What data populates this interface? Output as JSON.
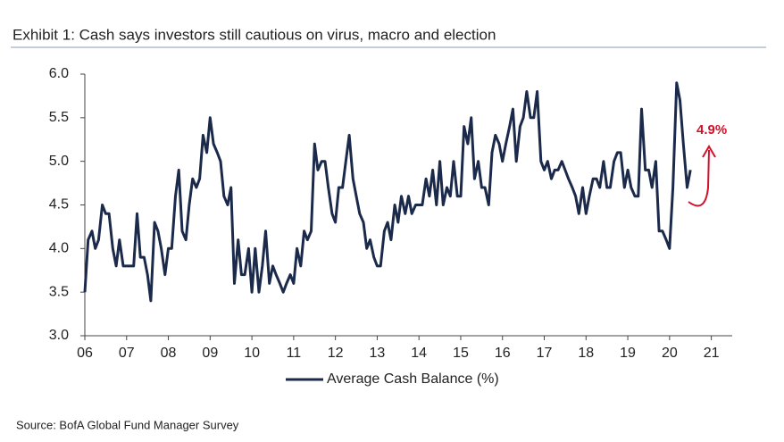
{
  "chart_data": {
    "type": "line",
    "title": "Exhibit 1: Cash says investors still cautious on virus, macro and election",
    "source": "Source: BofA Global Fund Manager Survey",
    "annotation": "4.9%",
    "legend": "bottom",
    "x": [
      2006.0,
      2006.08,
      2006.17,
      2006.25,
      2006.33,
      2006.42,
      2006.5,
      2006.58,
      2006.67,
      2006.75,
      2006.83,
      2006.92,
      2007.0,
      2007.08,
      2007.17,
      2007.25,
      2007.33,
      2007.42,
      2007.5,
      2007.58,
      2007.67,
      2007.75,
      2007.83,
      2007.92,
      2008.0,
      2008.08,
      2008.17,
      2008.25,
      2008.33,
      2008.42,
      2008.5,
      2008.58,
      2008.67,
      2008.75,
      2008.83,
      2008.92,
      2009.0,
      2009.08,
      2009.17,
      2009.25,
      2009.33,
      2009.42,
      2009.5,
      2009.58,
      2009.67,
      2009.75,
      2009.83,
      2009.92,
      2010.0,
      2010.08,
      2010.17,
      2010.25,
      2010.33,
      2010.42,
      2010.5,
      2010.58,
      2010.67,
      2010.75,
      2010.83,
      2010.92,
      2011.0,
      2011.08,
      2011.17,
      2011.25,
      2011.33,
      2011.42,
      2011.5,
      2011.58,
      2011.67,
      2011.75,
      2011.83,
      2011.92,
      2012.0,
      2012.08,
      2012.17,
      2012.25,
      2012.33,
      2012.42,
      2012.5,
      2012.58,
      2012.67,
      2012.75,
      2012.83,
      2012.92,
      2013.0,
      2013.08,
      2013.17,
      2013.25,
      2013.33,
      2013.42,
      2013.5,
      2013.58,
      2013.67,
      2013.75,
      2013.83,
      2013.92,
      2014.0,
      2014.08,
      2014.17,
      2014.25,
      2014.33,
      2014.42,
      2014.5,
      2014.58,
      2014.67,
      2014.75,
      2014.83,
      2014.92,
      2015.0,
      2015.08,
      2015.17,
      2015.25,
      2015.33,
      2015.42,
      2015.5,
      2015.58,
      2015.67,
      2015.75,
      2015.83,
      2015.92,
      2016.0,
      2016.08,
      2016.17,
      2016.25,
      2016.33,
      2016.42,
      2016.5,
      2016.58,
      2016.67,
      2016.75,
      2016.83,
      2016.92,
      2017.0,
      2017.08,
      2017.17,
      2017.25,
      2017.33,
      2017.42,
      2017.5,
      2017.58,
      2017.67,
      2017.75,
      2017.83,
      2017.92,
      2018.0,
      2018.08,
      2018.17,
      2018.25,
      2018.33,
      2018.42,
      2018.5,
      2018.58,
      2018.67,
      2018.75,
      2018.83,
      2018.92,
      2019.0,
      2019.08,
      2019.17,
      2019.25,
      2019.33,
      2019.42,
      2019.5,
      2019.58,
      2019.67,
      2019.75,
      2019.83,
      2019.92,
      2020.0,
      2020.08,
      2020.17,
      2020.25,
      2020.33,
      2020.42,
      2020.5
    ],
    "series": [
      {
        "name": "Average Cash Balance (%)",
        "color": "#1b2a4a",
        "values": [
          3.5,
          4.1,
          4.2,
          4.0,
          4.1,
          4.5,
          4.4,
          4.4,
          4.0,
          3.8,
          4.1,
          3.8,
          3.8,
          3.8,
          3.8,
          4.4,
          3.9,
          3.9,
          3.7,
          3.4,
          4.3,
          4.2,
          4.0,
          3.7,
          4.0,
          4.0,
          4.6,
          4.9,
          4.2,
          4.1,
          4.5,
          4.8,
          4.7,
          4.8,
          5.3,
          5.1,
          5.5,
          5.2,
          5.1,
          5.0,
          4.6,
          4.5,
          4.7,
          3.6,
          4.1,
          3.7,
          3.7,
          4.0,
          3.5,
          4.0,
          3.5,
          3.8,
          4.2,
          3.6,
          3.8,
          3.7,
          3.6,
          3.5,
          3.6,
          3.7,
          3.6,
          4.0,
          3.8,
          4.2,
          4.1,
          4.2,
          5.2,
          4.9,
          5.0,
          5.0,
          4.7,
          4.4,
          4.3,
          4.7,
          4.7,
          5.0,
          5.3,
          4.8,
          4.6,
          4.4,
          4.3,
          4.0,
          4.1,
          3.9,
          3.8,
          3.8,
          4.2,
          4.3,
          4.1,
          4.5,
          4.3,
          4.6,
          4.4,
          4.6,
          4.4,
          4.5,
          4.5,
          4.5,
          4.8,
          4.6,
          4.9,
          4.5,
          5.0,
          4.5,
          4.7,
          4.6,
          5.0,
          4.6,
          4.6,
          5.4,
          5.2,
          5.5,
          4.8,
          5.0,
          4.7,
          4.7,
          4.5,
          5.1,
          5.3,
          5.2,
          5.0,
          5.2,
          5.4,
          5.6,
          5.0,
          5.4,
          5.5,
          5.8,
          5.5,
          5.5,
          5.8,
          5.0,
          4.9,
          5.0,
          4.8,
          4.9,
          4.9,
          5.0,
          4.9,
          4.8,
          4.7,
          4.6,
          4.4,
          4.7,
          4.4,
          4.6,
          4.8,
          4.8,
          4.7,
          5.0,
          4.7,
          4.7,
          5.0,
          5.1,
          5.1,
          4.7,
          4.9,
          4.7,
          4.6,
          4.6,
          5.6,
          4.9,
          4.9,
          4.7,
          5.0,
          4.2,
          4.2,
          4.1,
          4.0,
          4.7,
          5.9,
          5.7,
          5.2,
          4.7,
          4.9
        ]
      }
    ],
    "xlim": [
      2006,
      2021.5
    ],
    "xticks": [
      {
        "value": 2006,
        "label": "06"
      },
      {
        "value": 2007,
        "label": "07"
      },
      {
        "value": 2008,
        "label": "08"
      },
      {
        "value": 2009,
        "label": "09"
      },
      {
        "value": 2010,
        "label": "10"
      },
      {
        "value": 2011,
        "label": "11"
      },
      {
        "value": 2012,
        "label": "12"
      },
      {
        "value": 2013,
        "label": "13"
      },
      {
        "value": 2014,
        "label": "14"
      },
      {
        "value": 2015,
        "label": "15"
      },
      {
        "value": 2016,
        "label": "16"
      },
      {
        "value": 2017,
        "label": "17"
      },
      {
        "value": 2018,
        "label": "18"
      },
      {
        "value": 2019,
        "label": "19"
      },
      {
        "value": 2020,
        "label": "20"
      },
      {
        "value": 2021,
        "label": "21"
      }
    ],
    "ylim": [
      3,
      6
    ],
    "yticks": [
      {
        "value": 3,
        "label": "3.0"
      },
      {
        "value": 3.5,
        "label": "3.5"
      },
      {
        "value": 4,
        "label": "4.0"
      },
      {
        "value": 4.5,
        "label": "4.5"
      },
      {
        "value": 5,
        "label": "5.0"
      },
      {
        "value": 5.5,
        "label": "5.5"
      },
      {
        "value": 6,
        "label": "6.0"
      }
    ]
  }
}
